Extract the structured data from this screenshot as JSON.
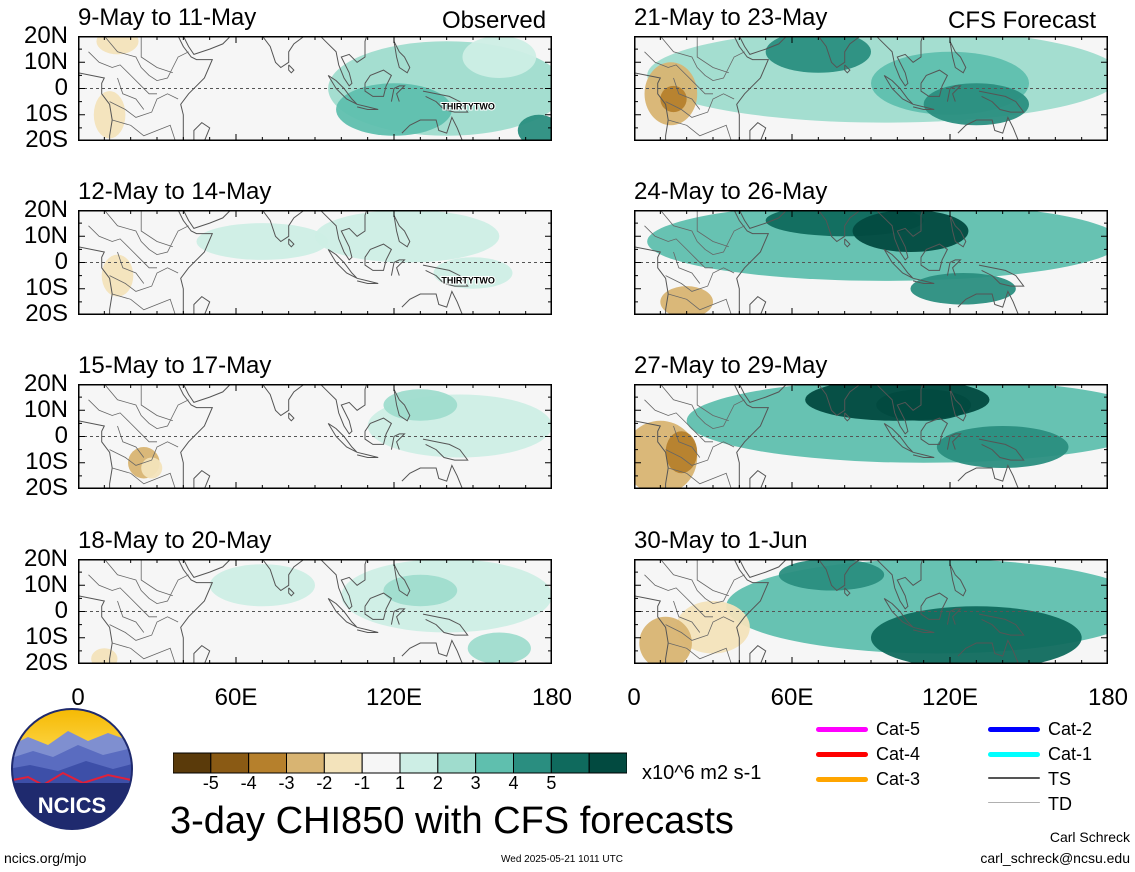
{
  "source": "ncics.org/mjo",
  "timestamp": "Wed 2025-05-21 1011 UTC",
  "main_title": "3-day CHI850 with CFS forecasts",
  "author": "Carl Schreck",
  "email": "carl_schreck@ncsu.edu",
  "logo_text": "NCICS",
  "column_tags": {
    "left": "Observed",
    "right": "CFS Forecast"
  },
  "lat_labels": [
    "20N",
    "10N",
    "0",
    "10S",
    "20S"
  ],
  "lon_labels": [
    "0",
    "60E",
    "120E",
    "180"
  ],
  "storm_label": "THIRTYTWO",
  "panels": [
    {
      "title": "9-May to 11-May",
      "col": "left",
      "storm": true
    },
    {
      "title": "12-May to 14-May",
      "col": "left",
      "storm": true
    },
    {
      "title": "15-May to 17-May",
      "col": "left",
      "storm": false
    },
    {
      "title": "18-May to 20-May",
      "col": "left",
      "storm": false
    },
    {
      "title": "21-May to 23-May",
      "col": "right",
      "storm": false
    },
    {
      "title": "24-May to 26-May",
      "col": "right",
      "storm": false
    },
    {
      "title": "27-May to 29-May",
      "col": "right",
      "storm": false
    },
    {
      "title": "30-May to 1-Jun",
      "col": "right",
      "storm": false
    }
  ],
  "colorbar": {
    "units": "x10^6 m2 s-1",
    "labels": [
      "-5",
      "-4",
      "-3",
      "-2",
      "-1",
      "1",
      "2",
      "3",
      "4",
      "5"
    ],
    "colors": [
      "#5a3a0a",
      "#8a5a14",
      "#b6802c",
      "#d8b472",
      "#f3e3bb",
      "#f6f6f6",
      "#cdeee5",
      "#9fdccd",
      "#5fbfae",
      "#2a8e80",
      "#0f6a5d",
      "#024a40"
    ]
  },
  "legend": [
    {
      "label": "Cat-5",
      "color": "#ff00ff"
    },
    {
      "label": "Cat-2",
      "color": "#0000ff"
    },
    {
      "label": "Cat-4",
      "color": "#ff0000"
    },
    {
      "label": "Cat-1",
      "color": "#00ffff"
    },
    {
      "label": "Cat-3",
      "color": "#ffa500"
    },
    {
      "label": "TS",
      "color": "#555555"
    },
    {
      "label": "TD",
      "color": "#b0b0b0"
    }
  ]
}
